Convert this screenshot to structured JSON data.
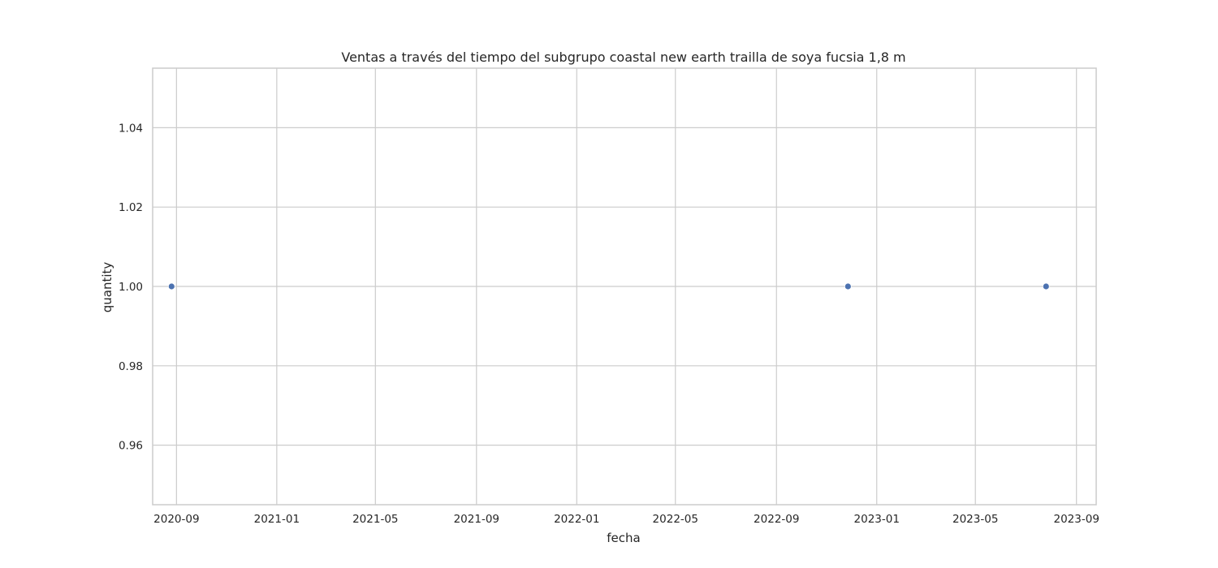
{
  "chart_data": {
    "type": "scatter",
    "title": "Ventas a través del tiempo del subgrupo coastal new earth trailla de soya fucsia 1,8 m",
    "xlabel": "fecha",
    "ylabel": "quantity",
    "grid": true,
    "x_ticks": [
      "2020-09",
      "2021-01",
      "2021-05",
      "2021-09",
      "2022-01",
      "2022-05",
      "2022-09",
      "2023-01",
      "2023-05",
      "2023-09"
    ],
    "y_ticks": [
      "0.96",
      "0.98",
      "1.00",
      "1.02",
      "1.04"
    ],
    "ylim": [
      0.945,
      1.055
    ],
    "xlim": [
      "2020-08-03",
      "2023-09-25"
    ],
    "series": [
      {
        "name": "quantity",
        "color": "#4c72b0",
        "points": [
          {
            "x": "2020-08-26",
            "y": 1.0
          },
          {
            "x": "2022-11-27",
            "y": 1.0
          },
          {
            "x": "2023-07-26",
            "y": 1.0
          }
        ]
      }
    ]
  }
}
